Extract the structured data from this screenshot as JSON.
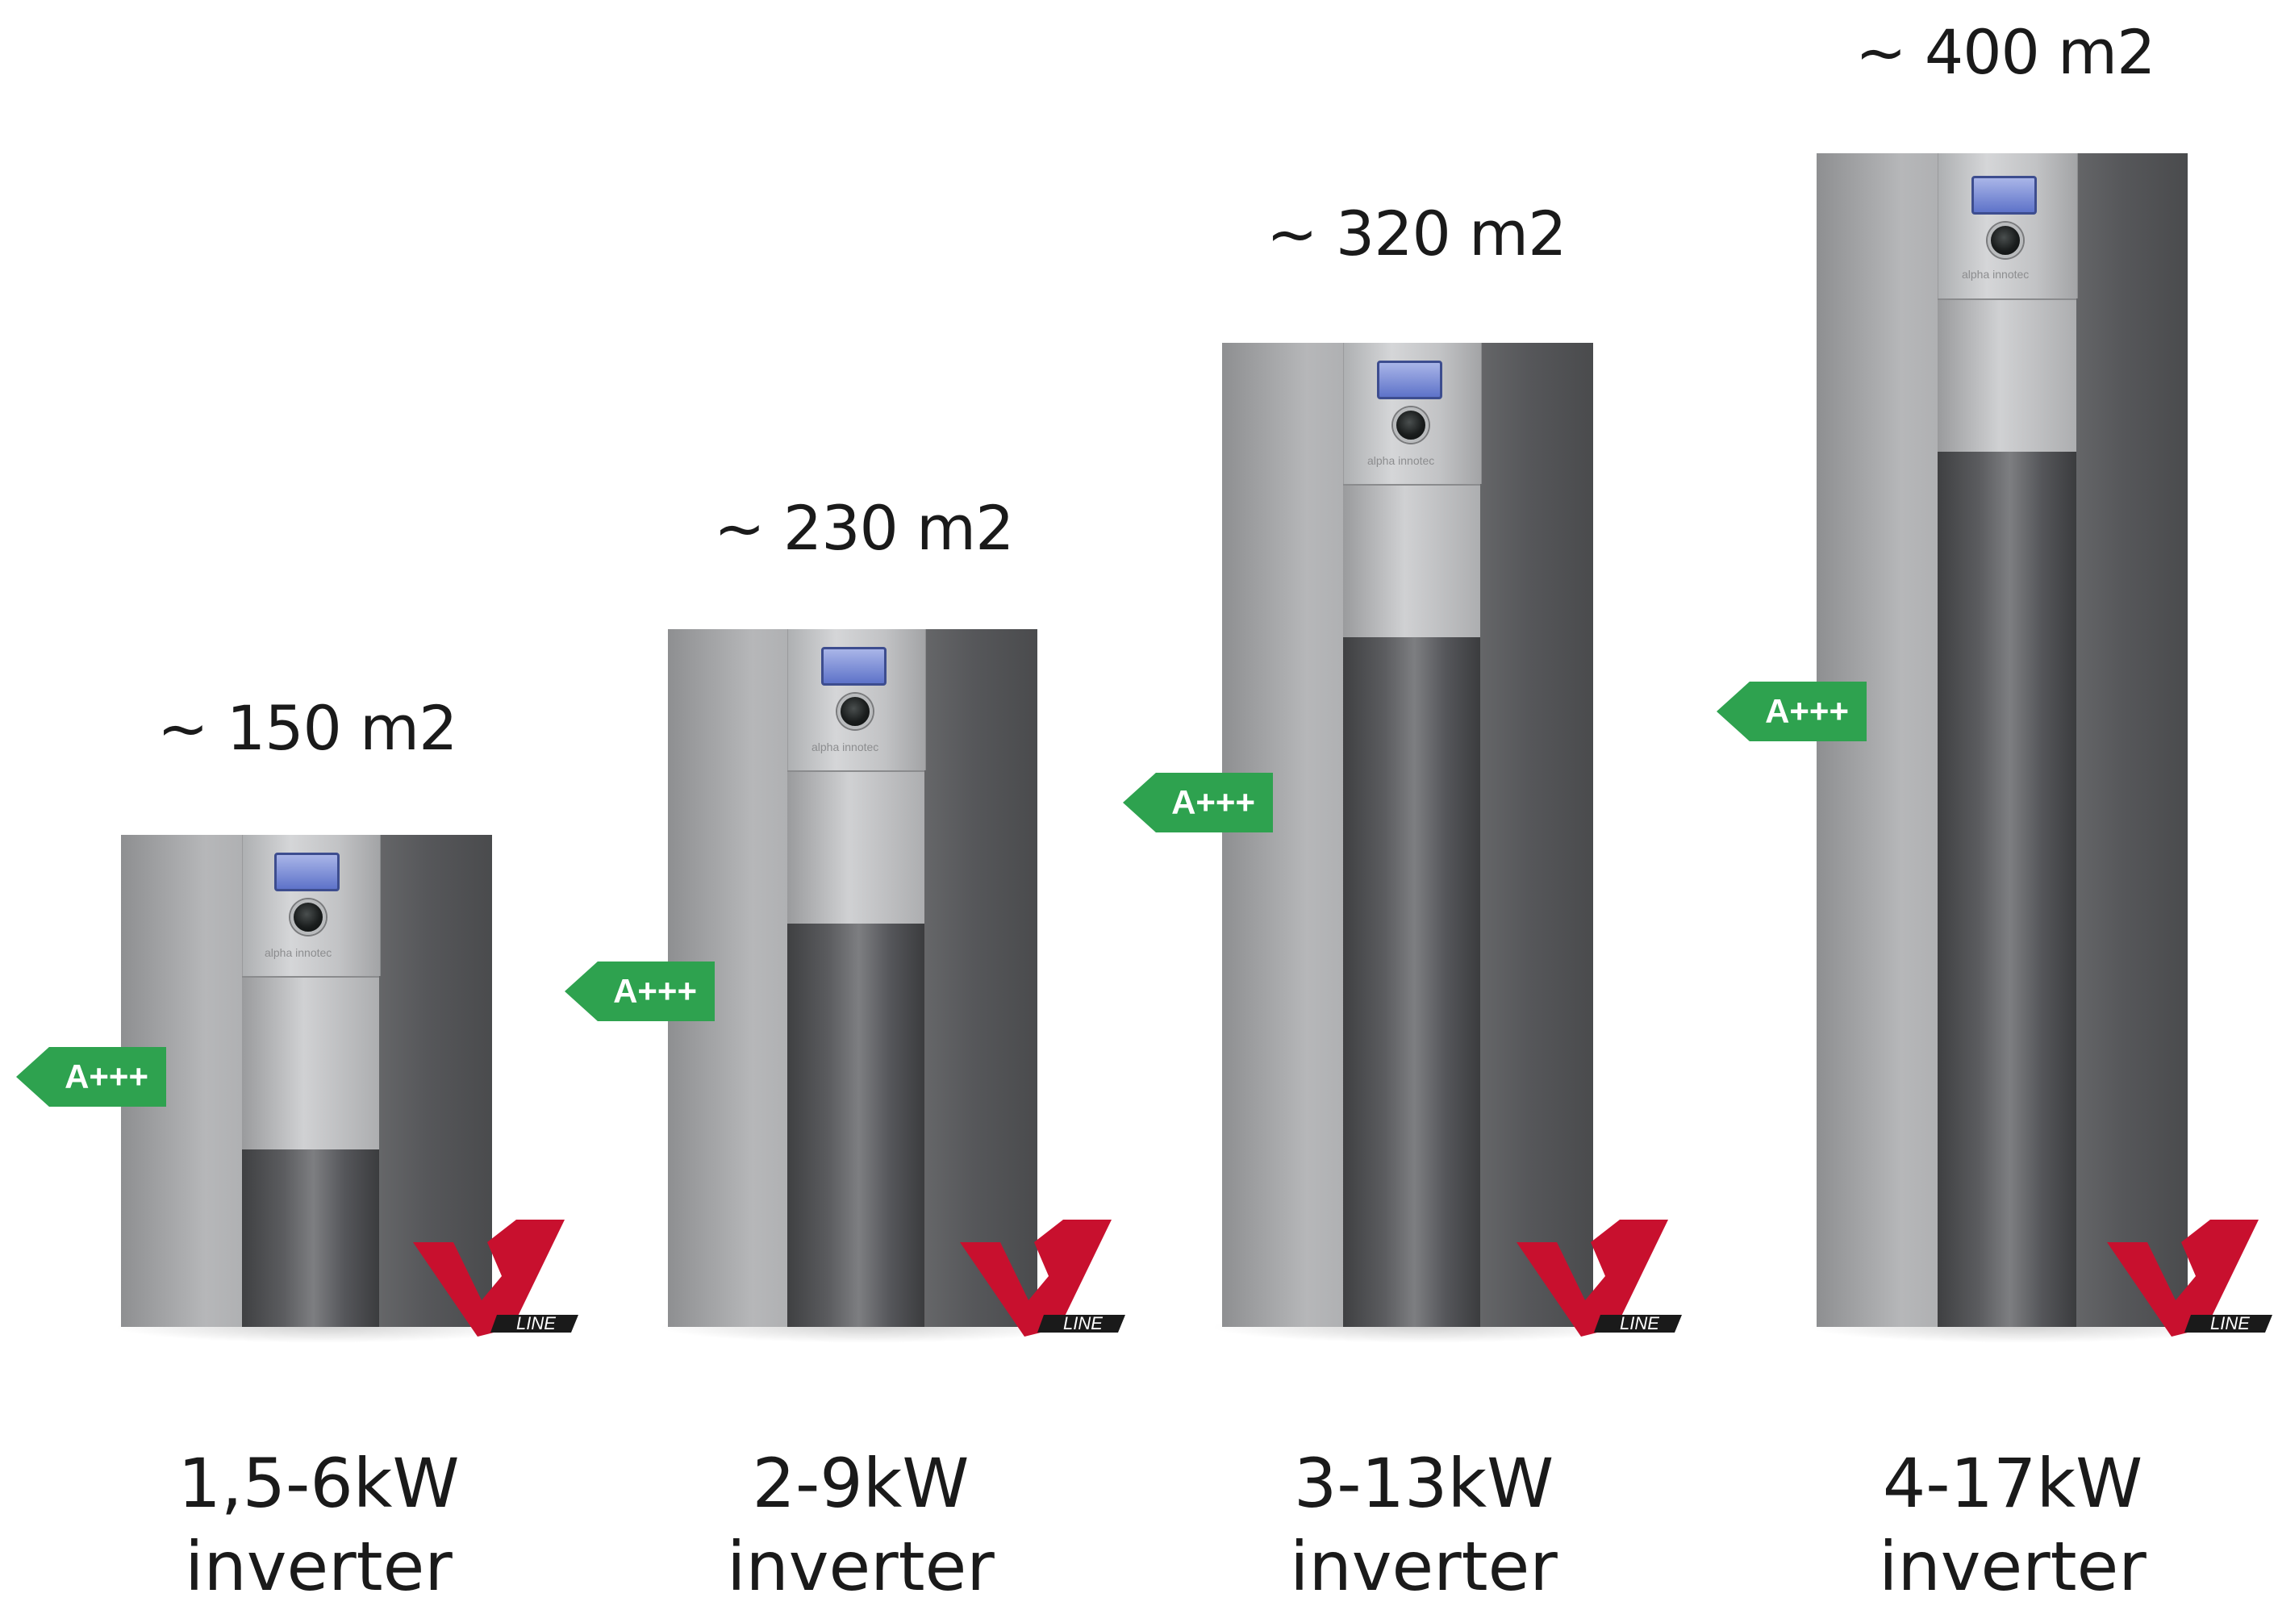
{
  "products": [
    {
      "area": "~ 150 m2",
      "power": "1,5-6kW",
      "type": "inverter",
      "badge": "A+++",
      "brand": "alpha innotec",
      "logo_text": "LINE"
    },
    {
      "area": "~ 230 m2",
      "power": "2-9kW",
      "type": "inverter",
      "badge": "A+++",
      "brand": "alpha innotec",
      "logo_text": "LINE"
    },
    {
      "area": "~ 320 m2",
      "power": "3-13kW",
      "type": "inverter",
      "badge": "A+++",
      "brand": "alpha innotec",
      "logo_text": "LINE"
    },
    {
      "area": "~ 400 m2",
      "power": "4-17kW",
      "type": "inverter",
      "badge": "A+++",
      "brand": "alpha innotec",
      "logo_text": "LINE"
    }
  ],
  "colors": {
    "badge_green": "#2ea24f",
    "logo_red": "#c8102e",
    "body_light": "#b6b7b9",
    "body_dark": "#56575a"
  },
  "icons": [
    "display-screen-icon",
    "control-knob-icon",
    "v-line-logo-icon"
  ]
}
